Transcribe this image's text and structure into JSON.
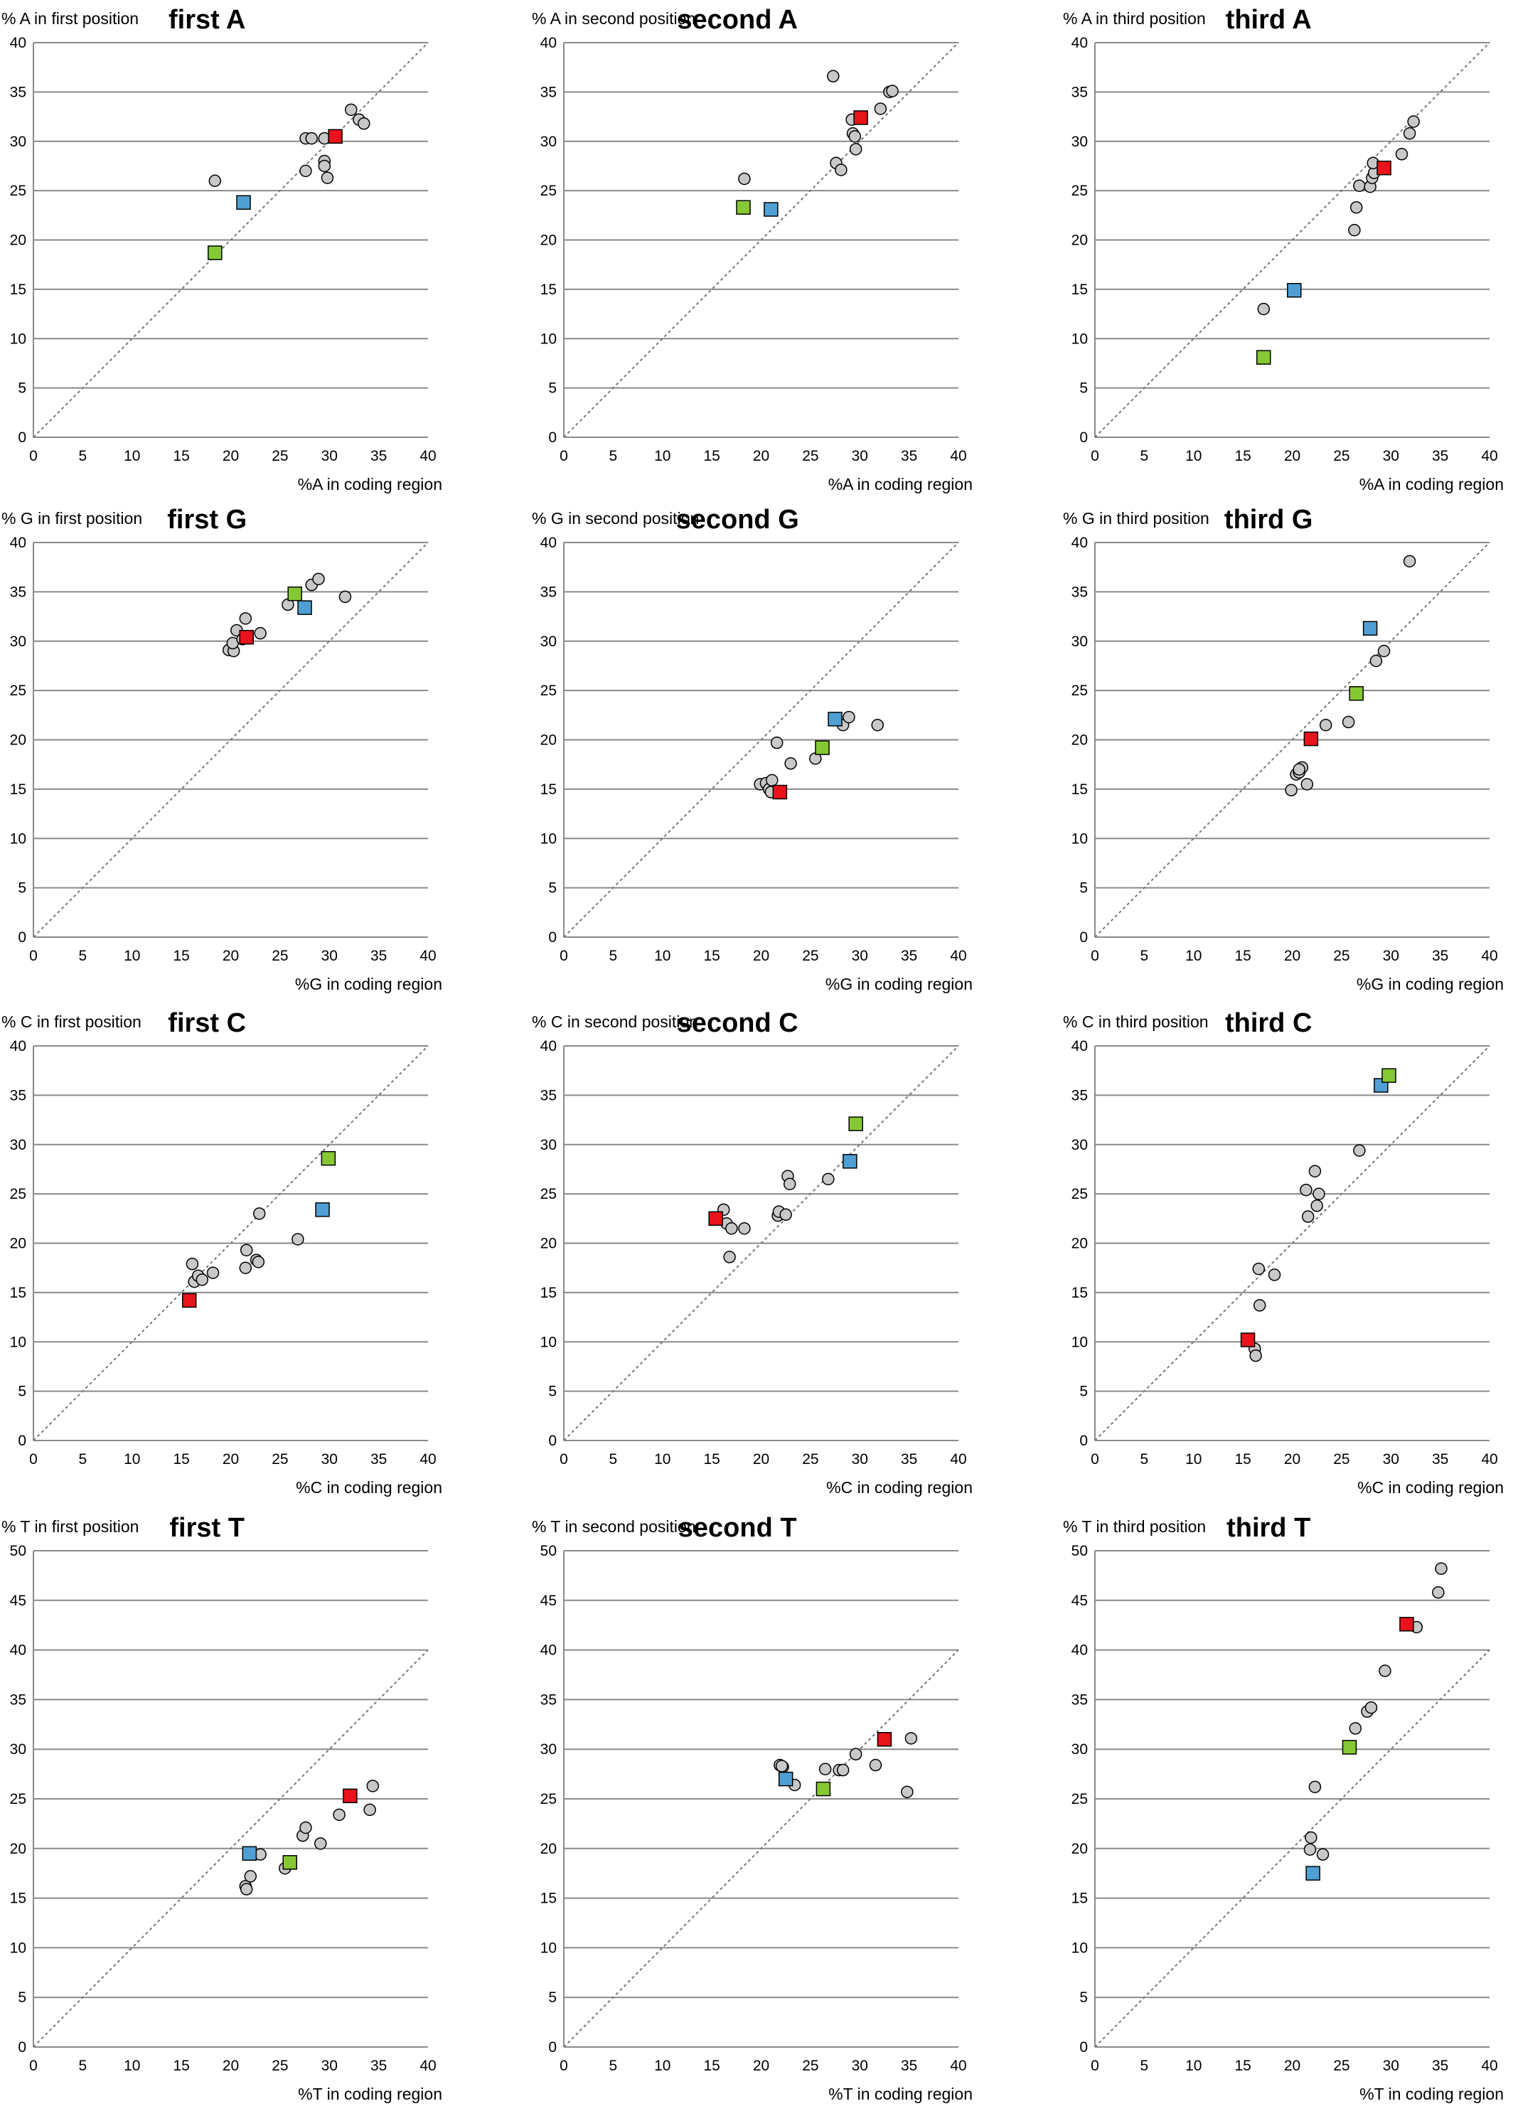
{
  "figure": {
    "colors": {
      "circle": "#c8c8c8",
      "red": "#e8131b",
      "blue": "#4f9fd4",
      "green": "#86c833",
      "grid": "#8a8a8a",
      "diagonal": "#777777"
    }
  },
  "chart_data": [
    {
      "type": "scatter",
      "title": "first A",
      "ylabel": "% A in first position",
      "xlabel": "%A in coding region",
      "xlim": [
        0,
        40
      ],
      "ylim": [
        0,
        40
      ],
      "xticks": [
        "0",
        "5",
        "10",
        "15",
        "20",
        "25",
        "30",
        "35",
        "40"
      ],
      "yticks": [
        "0",
        "5",
        "10",
        "15",
        "20",
        "25",
        "30",
        "35",
        "40"
      ],
      "circles": [
        [
          18.4,
          26
        ],
        [
          27.6,
          30.3
        ],
        [
          28.2,
          30.3
        ],
        [
          29.5,
          30.3
        ],
        [
          27.6,
          27
        ],
        [
          29.5,
          28
        ],
        [
          29.5,
          27.5
        ],
        [
          29.8,
          26.3
        ],
        [
          32.2,
          33.2
        ],
        [
          33,
          32.2
        ],
        [
          33.5,
          31.8
        ]
      ],
      "red": [
        [
          30.6,
          30.5
        ]
      ],
      "blue": [
        [
          21.3,
          23.8
        ]
      ],
      "green": [
        [
          18.4,
          18.7
        ]
      ]
    },
    {
      "type": "scatter",
      "title": "second A",
      "ylabel": "% A in second position",
      "xlabel": "%A in coding region",
      "xlim": [
        0,
        40
      ],
      "ylim": [
        0,
        40
      ],
      "xticks": [
        "0",
        "5",
        "10",
        "15",
        "20",
        "25",
        "30",
        "35",
        "40"
      ],
      "yticks": [
        "0",
        "5",
        "10",
        "15",
        "20",
        "25",
        "30",
        "35",
        "40"
      ],
      "circles": [
        [
          18.3,
          26.2
        ],
        [
          27.3,
          36.6
        ],
        [
          29.2,
          32.2
        ],
        [
          29.3,
          30.8
        ],
        [
          29.5,
          30.5
        ],
        [
          29.6,
          29.2
        ],
        [
          27.6,
          27.8
        ],
        [
          28.1,
          27.1
        ],
        [
          32.1,
          33.3
        ],
        [
          33,
          35
        ],
        [
          33.3,
          35.1
        ]
      ],
      "red": [
        [
          30.1,
          32.4
        ]
      ],
      "blue": [
        [
          21,
          23.1
        ]
      ],
      "green": [
        [
          18.2,
          23.3
        ]
      ]
    },
    {
      "type": "scatter",
      "title": "third A",
      "ylabel": "% A in third position",
      "xlabel": "%A in coding region",
      "xlim": [
        0,
        40
      ],
      "ylim": [
        0,
        40
      ],
      "xticks": [
        "0",
        "5",
        "10",
        "15",
        "20",
        "25",
        "30",
        "35",
        "40"
      ],
      "yticks": [
        "0",
        "5",
        "10",
        "15",
        "20",
        "25",
        "30",
        "35",
        "40"
      ],
      "circles": [
        [
          17.1,
          13
        ],
        [
          26.3,
          21
        ],
        [
          26.5,
          23.3
        ],
        [
          26.8,
          25.5
        ],
        [
          27.9,
          25.4
        ],
        [
          28.1,
          26.3
        ],
        [
          28.3,
          26.8
        ],
        [
          28.2,
          27.8
        ],
        [
          31.1,
          28.7
        ],
        [
          31.9,
          30.8
        ],
        [
          32.3,
          32
        ]
      ],
      "red": [
        [
          29.3,
          27.3
        ]
      ],
      "blue": [
        [
          20.2,
          14.9
        ]
      ],
      "green": [
        [
          17.1,
          8.1
        ]
      ]
    },
    {
      "type": "scatter",
      "title": "first G",
      "ylabel": "% G in first position",
      "xlabel": "%G in coding region",
      "xlim": [
        0,
        40
      ],
      "ylim": [
        0,
        40
      ],
      "xticks": [
        "0",
        "5",
        "10",
        "15",
        "20",
        "25",
        "30",
        "35",
        "40"
      ],
      "yticks": [
        "0",
        "5",
        "10",
        "15",
        "20",
        "25",
        "30",
        "35",
        "40"
      ],
      "circles": [
        [
          19.8,
          29.1
        ],
        [
          20.3,
          29
        ],
        [
          20.2,
          29.8
        ],
        [
          20.6,
          31.1
        ],
        [
          21.2,
          30.2
        ],
        [
          21.5,
          32.3
        ],
        [
          23,
          30.8
        ],
        [
          25.8,
          33.7
        ],
        [
          28.2,
          35.7
        ],
        [
          28.9,
          36.3
        ],
        [
          31.6,
          34.5
        ]
      ],
      "red": [
        [
          21.6,
          30.4
        ]
      ],
      "blue": [
        [
          27.5,
          33.4
        ]
      ],
      "green": [
        [
          26.5,
          34.8
        ]
      ]
    },
    {
      "type": "scatter",
      "title": "second G",
      "ylabel": "% G in second position",
      "xlabel": "%G in coding region",
      "xlim": [
        0,
        40
      ],
      "ylim": [
        0,
        40
      ],
      "xticks": [
        "0",
        "5",
        "10",
        "15",
        "20",
        "25",
        "30",
        "35",
        "40"
      ],
      "yticks": [
        "0",
        "5",
        "10",
        "15",
        "20",
        "25",
        "30",
        "35",
        "40"
      ],
      "circles": [
        [
          19.9,
          15.5
        ],
        [
          20.5,
          15.6
        ],
        [
          20.8,
          15
        ],
        [
          21,
          14.7
        ],
        [
          21.1,
          15.9
        ],
        [
          21.6,
          19.7
        ],
        [
          23,
          17.6
        ],
        [
          25.5,
          18.1
        ],
        [
          28.3,
          21.5
        ],
        [
          28.9,
          22.3
        ],
        [
          31.8,
          21.5
        ]
      ],
      "red": [
        [
          21.9,
          14.7
        ]
      ],
      "blue": [
        [
          27.5,
          22.1
        ]
      ],
      "green": [
        [
          26.2,
          19.2
        ]
      ]
    },
    {
      "type": "scatter",
      "title": "third G",
      "ylabel": "% G in third position",
      "xlabel": "%G in coding region",
      "xlim": [
        0,
        40
      ],
      "ylim": [
        0,
        40
      ],
      "xticks": [
        "0",
        "5",
        "10",
        "15",
        "20",
        "25",
        "30",
        "35",
        "40"
      ],
      "yticks": [
        "0",
        "5",
        "10",
        "15",
        "20",
        "25",
        "30",
        "35",
        "40"
      ],
      "circles": [
        [
          19.9,
          14.9
        ],
        [
          20.4,
          16.5
        ],
        [
          20.7,
          16.7
        ],
        [
          21,
          17.2
        ],
        [
          21.5,
          15.5
        ],
        [
          23.4,
          21.5
        ],
        [
          25.7,
          21.8
        ],
        [
          28.5,
          28
        ],
        [
          29.3,
          29
        ],
        [
          31.9,
          38.1
        ],
        [
          20.7,
          17
        ]
      ],
      "red": [
        [
          21.9,
          20.1
        ]
      ],
      "blue": [
        [
          27.9,
          31.3
        ]
      ],
      "green": [
        [
          26.5,
          24.7
        ]
      ]
    },
    {
      "type": "scatter",
      "title": "first C",
      "ylabel": "% C in first position",
      "xlabel": "%C in coding region",
      "xlim": [
        0,
        40
      ],
      "ylim": [
        0,
        40
      ],
      "xticks": [
        "0",
        "5",
        "10",
        "15",
        "20",
        "25",
        "30",
        "35",
        "40"
      ],
      "yticks": [
        "0",
        "5",
        "10",
        "15",
        "20",
        "25",
        "30",
        "35",
        "40"
      ],
      "circles": [
        [
          16.1,
          17.9
        ],
        [
          16.3,
          16.1
        ],
        [
          16.7,
          16.7
        ],
        [
          17.1,
          16.3
        ],
        [
          18.2,
          17
        ],
        [
          21.5,
          17.5
        ],
        [
          21.6,
          19.3
        ],
        [
          22.6,
          18.3
        ],
        [
          22.8,
          18.1
        ],
        [
          22.9,
          23
        ],
        [
          26.8,
          20.4
        ]
      ],
      "red": [
        [
          15.8,
          14.2
        ]
      ],
      "blue": [
        [
          29.3,
          23.4
        ]
      ],
      "green": [
        [
          29.9,
          28.6
        ]
      ]
    },
    {
      "type": "scatter",
      "title": "second C",
      "ylabel": "% C in second position",
      "xlabel": "%C in coding region",
      "xlim": [
        0,
        40
      ],
      "ylim": [
        0,
        40
      ],
      "xticks": [
        "0",
        "5",
        "10",
        "15",
        "20",
        "25",
        "30",
        "35",
        "40"
      ],
      "yticks": [
        "0",
        "5",
        "10",
        "15",
        "20",
        "25",
        "30",
        "35",
        "40"
      ],
      "circles": [
        [
          16.2,
          23.4
        ],
        [
          16.5,
          22
        ],
        [
          16.8,
          18.6
        ],
        [
          17,
          21.5
        ],
        [
          18.3,
          21.5
        ],
        [
          21.7,
          22.8
        ],
        [
          21.8,
          23.2
        ],
        [
          22.5,
          22.9
        ],
        [
          22.7,
          26.8
        ],
        [
          22.9,
          26
        ],
        [
          26.8,
          26.5
        ]
      ],
      "red": [
        [
          15.4,
          22.5
        ]
      ],
      "blue": [
        [
          29,
          28.3
        ]
      ],
      "green": [
        [
          29.6,
          32.1
        ]
      ]
    },
    {
      "type": "scatter",
      "title": "third C",
      "ylabel": "% C in third position",
      "xlabel": "%C in coding region",
      "xlim": [
        0,
        40
      ],
      "ylim": [
        0,
        40
      ],
      "xticks": [
        "0",
        "5",
        "10",
        "15",
        "20",
        "25",
        "30",
        "35",
        "40"
      ],
      "yticks": [
        "0",
        "5",
        "10",
        "15",
        "20",
        "25",
        "30",
        "35",
        "40"
      ],
      "circles": [
        [
          16.2,
          9.3
        ],
        [
          16.3,
          8.6
        ],
        [
          16.7,
          13.7
        ],
        [
          16.6,
          17.4
        ],
        [
          18.2,
          16.8
        ],
        [
          21.4,
          25.4
        ],
        [
          21.6,
          22.7
        ],
        [
          22.3,
          27.3
        ],
        [
          22.5,
          23.8
        ],
        [
          22.7,
          25
        ],
        [
          26.8,
          29.4
        ]
      ],
      "red": [
        [
          15.5,
          10.2
        ]
      ],
      "blue": [
        [
          29,
          36
        ]
      ],
      "green": [
        [
          29.8,
          37
        ]
      ]
    },
    {
      "type": "scatter",
      "title": "first T",
      "ylabel": "% T in first position",
      "xlabel": "%T in coding region",
      "xlim": [
        0,
        40
      ],
      "ylim": [
        0,
        50
      ],
      "xticks": [
        "0",
        "5",
        "10",
        "15",
        "20",
        "25",
        "30",
        "35",
        "40"
      ],
      "yticks": [
        "0",
        "5",
        "10",
        "15",
        "20",
        "25",
        "30",
        "35",
        "40",
        "45",
        "50"
      ],
      "circles": [
        [
          21.5,
          16.2
        ],
        [
          21.6,
          15.9
        ],
        [
          22,
          17.2
        ],
        [
          23,
          19.4
        ],
        [
          25.5,
          18
        ],
        [
          27.3,
          21.3
        ],
        [
          27.6,
          22.1
        ],
        [
          29.1,
          20.5
        ],
        [
          31,
          23.4
        ],
        [
          34.1,
          23.9
        ],
        [
          34.4,
          26.3
        ]
      ],
      "red": [
        [
          32.1,
          25.3
        ]
      ],
      "blue": [
        [
          21.9,
          19.5
        ]
      ],
      "green": [
        [
          26,
          18.6
        ]
      ]
    },
    {
      "type": "scatter",
      "title": "second T",
      "ylabel": "% T in second position",
      "xlabel": "%T in coding region",
      "xlim": [
        0,
        40
      ],
      "ylim": [
        0,
        50
      ],
      "xticks": [
        "0",
        "5",
        "10",
        "15",
        "20",
        "25",
        "30",
        "35",
        "40"
      ],
      "yticks": [
        "0",
        "5",
        "10",
        "15",
        "20",
        "25",
        "30",
        "35",
        "40",
        "45",
        "50"
      ],
      "circles": [
        [
          21.9,
          28.4
        ],
        [
          22.2,
          28.2
        ],
        [
          23.4,
          26.4
        ],
        [
          26.5,
          28
        ],
        [
          27.9,
          27.9
        ],
        [
          28.3,
          27.9
        ],
        [
          29.6,
          29.5
        ],
        [
          31.6,
          28.4
        ],
        [
          34.8,
          25.7
        ],
        [
          35.2,
          31.1
        ],
        [
          22.1,
          28.3
        ]
      ],
      "red": [
        [
          32.5,
          31
        ]
      ],
      "blue": [
        [
          22.5,
          27
        ]
      ],
      "green": [
        [
          26.3,
          26
        ]
      ]
    },
    {
      "type": "scatter",
      "title": "third T",
      "ylabel": "% T in third position",
      "xlabel": "%T in coding region",
      "xlim": [
        0,
        40
      ],
      "ylim": [
        0,
        50
      ],
      "xticks": [
        "0",
        "5",
        "10",
        "15",
        "20",
        "25",
        "30",
        "35",
        "40"
      ],
      "yticks": [
        "0",
        "5",
        "10",
        "15",
        "20",
        "25",
        "30",
        "35",
        "40",
        "45",
        "50"
      ],
      "circles": [
        [
          21.8,
          19.9
        ],
        [
          21.9,
          21.1
        ],
        [
          22.3,
          26.2
        ],
        [
          23.1,
          19.4
        ],
        [
          26.4,
          32.1
        ],
        [
          27.6,
          33.8
        ],
        [
          28,
          34.2
        ],
        [
          29.4,
          37.9
        ],
        [
          32.6,
          42.3
        ],
        [
          34.8,
          45.8
        ],
        [
          35.1,
          48.2
        ]
      ],
      "red": [
        [
          31.6,
          42.6
        ]
      ],
      "blue": [
        [
          22.1,
          17.5
        ]
      ],
      "green": [
        [
          25.8,
          30.2
        ]
      ]
    }
  ]
}
